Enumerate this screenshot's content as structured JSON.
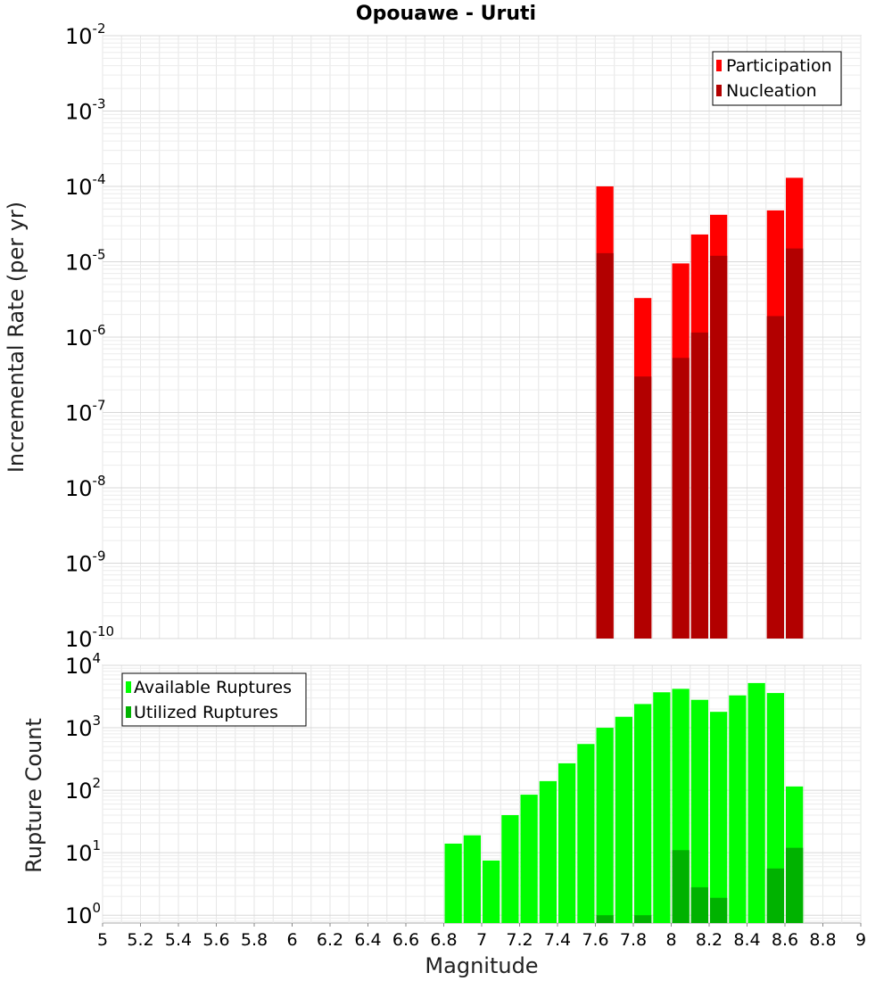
{
  "chart_data": [
    {
      "type": "bar",
      "title": "Opouawe - Uruti",
      "ylabel": "Incremental Rate (per yr)",
      "xlabel": "",
      "xlim": [
        5,
        9
      ],
      "yscale": "log",
      "ylim": [
        1e-10,
        0.01
      ],
      "y_ticks": [
        {
          "base": "10",
          "exp": "-2"
        },
        {
          "base": "10",
          "exp": "-3"
        },
        {
          "base": "10",
          "exp": "-4"
        },
        {
          "base": "10",
          "exp": "-5"
        },
        {
          "base": "10",
          "exp": "-6"
        },
        {
          "base": "10",
          "exp": "-7"
        },
        {
          "base": "10",
          "exp": "-8"
        },
        {
          "base": "10",
          "exp": "-9"
        },
        {
          "base": "10",
          "exp": "-10"
        }
      ],
      "legend_position": "top-right",
      "series": [
        {
          "name": "Participation",
          "color": "#ff0000",
          "x": [
            7.65,
            7.85,
            8.05,
            8.15,
            8.25,
            8.55,
            8.65
          ],
          "values": [
            0.0001,
            3.3e-06,
            9.5e-06,
            2.3e-05,
            4.2e-05,
            4.8e-05,
            0.00013
          ]
        },
        {
          "name": "Nucleation",
          "color": "#b20000",
          "x": [
            7.65,
            7.85,
            8.05,
            8.15,
            8.25,
            8.55,
            8.65
          ],
          "values": [
            1.3e-05,
            3e-07,
            5.3e-07,
            1.15e-06,
            1.2e-05,
            1.9e-06,
            1.5e-05
          ]
        }
      ]
    },
    {
      "type": "bar",
      "title": "",
      "ylabel": "Rupture Count",
      "xlabel": "Magnitude",
      "xlim": [
        5,
        9
      ],
      "yscale": "log",
      "ylim": [
        0.75,
        10000
      ],
      "x_ticks": [
        "5",
        "5.2",
        "5.4",
        "5.6",
        "5.8",
        "6",
        "6.2",
        "6.4",
        "6.6",
        "6.8",
        "7",
        "7.2",
        "7.4",
        "7.6",
        "7.8",
        "8",
        "8.2",
        "8.4",
        "8.6",
        "8.8",
        "9"
      ],
      "y_ticks": [
        {
          "base": "10",
          "exp": "4"
        },
        {
          "base": "10",
          "exp": "3"
        },
        {
          "base": "10",
          "exp": "2"
        },
        {
          "base": "10",
          "exp": "1"
        },
        {
          "base": "10",
          "exp": "0"
        }
      ],
      "legend_position": "top-left",
      "series": [
        {
          "name": "Available Ruptures",
          "color": "#00ff00",
          "x": [
            6.85,
            6.95,
            7.05,
            7.15,
            7.25,
            7.35,
            7.45,
            7.55,
            7.65,
            7.75,
            7.85,
            7.95,
            8.05,
            8.15,
            8.25,
            8.35,
            8.45,
            8.55,
            8.65
          ],
          "values": [
            14,
            19,
            7.5,
            40,
            85,
            140,
            270,
            550,
            1000,
            1500,
            2400,
            3700,
            4200,
            2800,
            1800,
            3300,
            5200,
            3600,
            115
          ]
        },
        {
          "name": "Utilized Ruptures",
          "color": "#00b200",
          "x": [
            7.65,
            7.85,
            8.05,
            8.15,
            8.25,
            8.55,
            8.65
          ],
          "values": [
            1,
            1,
            11,
            2.8,
            1.9,
            5.6,
            12
          ]
        }
      ]
    }
  ]
}
